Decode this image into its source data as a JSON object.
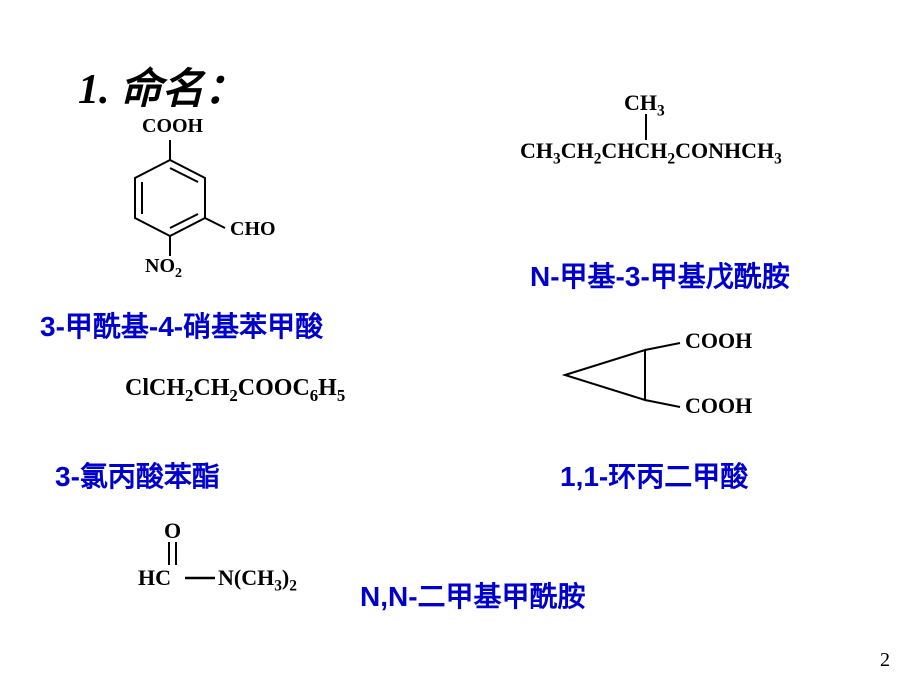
{
  "title": "1.  命名：",
  "structures": {
    "benzoic": {
      "cooh": "COOH",
      "cho": "CHO",
      "no2": "NO2",
      "name": "3-甲酰基-4-硝基苯甲酸"
    },
    "amide_branched": {
      "top": "CH3",
      "main_parts": [
        "CH",
        "3",
        "CH",
        "2",
        "CHCH",
        "2",
        "CONHCH",
        "3"
      ],
      "name": "N-甲基-3-甲基戊酰胺"
    },
    "ester": {
      "formula_parts": [
        "ClCH",
        "2",
        "CH",
        "2",
        "COOC",
        "6",
        "H",
        "5"
      ],
      "name": "3-氯丙酸苯酯"
    },
    "cyclopropane": {
      "cooh1": "COOH",
      "cooh2": "COOH",
      "name": "1,1-环丙二甲酸"
    },
    "dmf": {
      "o": "O",
      "hc": "HC",
      "n_parts": [
        "N(CH",
        "3",
        ")",
        "2"
      ],
      "name": "N,N-二甲基甲酰胺"
    }
  },
  "pagenum": "2",
  "colors": {
    "name_color": "#0000cc",
    "text_color": "#000000",
    "bg": "#ffffff"
  }
}
